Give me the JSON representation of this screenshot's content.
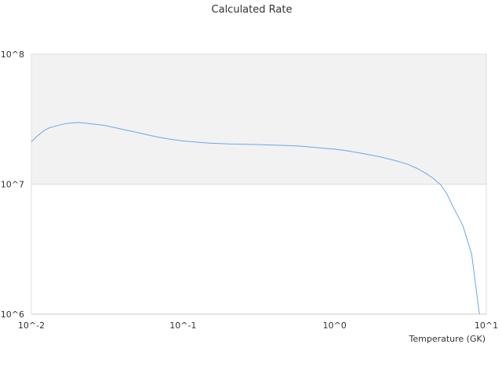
{
  "chart_data": {
    "type": "line",
    "title": "Calculated Rate",
    "xlabel": "Temperature (GK)",
    "ylabel": "",
    "x_scale": "log",
    "y_scale": "log",
    "xlim": [
      0.01,
      10
    ],
    "ylim": [
      1000000,
      100000000
    ],
    "x_ticks": [
      "10^-2",
      "10^-1",
      "10^0",
      "10^1"
    ],
    "y_ticks": [
      "10^6",
      "10^7",
      "10^8"
    ],
    "band": {
      "from": 10000000,
      "to": 100000000,
      "color": "#f2f2f2"
    },
    "grid": true,
    "legend": "none",
    "series": [
      {
        "color": "#6aa8e8",
        "x": [
          0.01,
          0.011,
          0.012,
          0.013,
          0.015,
          0.017,
          0.02,
          0.022,
          0.025,
          0.03,
          0.035,
          0.04,
          0.05,
          0.06,
          0.07,
          0.08,
          0.1,
          0.12,
          0.15,
          0.2,
          0.25,
          0.3,
          0.4,
          0.5,
          0.6,
          0.7,
          0.8,
          1.0,
          1.2,
          1.5,
          2.0,
          2.5,
          3.0,
          3.5,
          4.0,
          4.5,
          5.0,
          5.5,
          6.0,
          7.0,
          8.0,
          9.0
        ],
        "y": [
          21200000,
          23600000,
          25600000,
          27000000,
          28300000,
          29300000,
          29800000,
          29600000,
          29100000,
          28400000,
          27300000,
          26400000,
          25000000,
          23800000,
          22900000,
          22300000,
          21500000,
          21100000,
          20700000,
          20400000,
          20300000,
          20200000,
          20000000,
          19800000,
          19600000,
          19300000,
          19000000,
          18600000,
          18100000,
          17300000,
          16200000,
          15200000,
          14300000,
          13200000,
          12100000,
          11000000,
          9900000,
          8400000,
          6800000,
          4800000,
          2900000,
          1000000
        ]
      }
    ]
  }
}
